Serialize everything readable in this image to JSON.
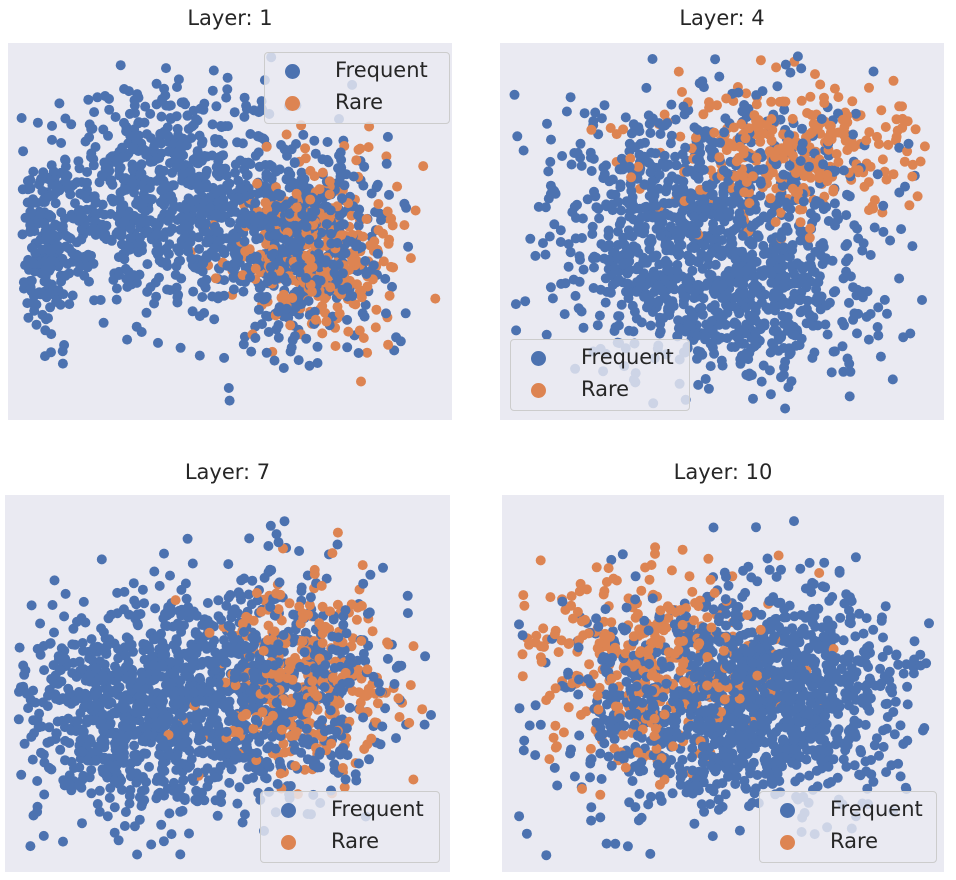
{
  "colors": {
    "frequent": "#4c72b0",
    "rare": "#dd8452",
    "plot_bg": "#eaeaf2"
  },
  "chart_data": [
    {
      "type": "scatter",
      "title": "Layer: 1",
      "legend_location": "upper right",
      "grid": false,
      "xlim": [
        -10,
        10
      ],
      "ylim": [
        -10,
        10
      ],
      "series": [
        {
          "name": "Frequent",
          "n": 1500,
          "color": "#4c72b0",
          "clusters": [
            {
              "w": 0.18,
              "cx": -5.5,
              "cy": 1.5,
              "sx": 1.6,
              "sy": 2.8
            },
            {
              "w": 0.22,
              "cx": -2.5,
              "cy": 2.0,
              "sx": 1.6,
              "sy": 2.8
            },
            {
              "w": 0.2,
              "cx": 1.0,
              "cy": 0.5,
              "sx": 1.8,
              "sy": 2.8
            },
            {
              "w": 0.28,
              "cx": 3.5,
              "cy": -0.5,
              "sx": 1.8,
              "sy": 2.6
            },
            {
              "w": 0.12,
              "cx": -8.3,
              "cy": -1.0,
              "sx": 0.7,
              "sy": 2.5
            }
          ]
        },
        {
          "name": "Rare",
          "n": 320,
          "color": "#dd8452",
          "clusters": [
            {
              "w": 1.0,
              "cx": 4.0,
              "cy": -1.0,
              "sx": 1.9,
              "sy": 2.4
            }
          ]
        }
      ]
    },
    {
      "type": "scatter",
      "title": "Layer: 4",
      "legend_location": "lower left",
      "grid": false,
      "xlim": [
        -10,
        10
      ],
      "ylim": [
        -10,
        10
      ],
      "series": [
        {
          "name": "Frequent",
          "n": 1300,
          "color": "#4c72b0",
          "clusters": [
            {
              "w": 0.4,
              "cx": -2.5,
              "cy": -1.5,
              "sx": 2.6,
              "sy": 3.0
            },
            {
              "w": 0.3,
              "cx": 2.0,
              "cy": -3.5,
              "sx": 2.4,
              "sy": 2.4
            },
            {
              "w": 0.3,
              "cx": 0.0,
              "cy": 3.0,
              "sx": 3.8,
              "sy": 2.6
            }
          ]
        },
        {
          "name": "Rare",
          "n": 320,
          "color": "#dd8452",
          "clusters": [
            {
              "w": 1.0,
              "cx": 3.0,
              "cy": 4.0,
              "sx": 3.0,
              "sy": 1.8
            }
          ]
        }
      ]
    },
    {
      "type": "scatter",
      "title": "Layer: 7",
      "legend_location": "lower right",
      "grid": false,
      "xlim": [
        -10,
        10
      ],
      "ylim": [
        -10,
        10
      ],
      "series": [
        {
          "name": "Frequent",
          "n": 1500,
          "color": "#4c72b0",
          "clusters": [
            {
              "w": 0.6,
              "cx": -4.0,
              "cy": -1.5,
              "sx": 3.0,
              "sy": 2.8
            },
            {
              "w": 0.4,
              "cx": 2.0,
              "cy": 0.0,
              "sx": 3.0,
              "sy": 3.2
            }
          ]
        },
        {
          "name": "Rare",
          "n": 320,
          "color": "#dd8452",
          "clusters": [
            {
              "w": 1.0,
              "cx": 3.5,
              "cy": 0.0,
              "sx": 2.2,
              "sy": 2.6
            }
          ]
        }
      ]
    },
    {
      "type": "scatter",
      "title": "Layer: 10",
      "legend_location": "lower right",
      "grid": false,
      "xlim": [
        -10,
        10
      ],
      "ylim": [
        -10,
        10
      ],
      "series": [
        {
          "name": "Frequent",
          "n": 1400,
          "color": "#4c72b0",
          "clusters": [
            {
              "w": 0.7,
              "cx": 2.5,
              "cy": -0.5,
              "sx": 2.8,
              "sy": 2.8
            },
            {
              "w": 0.3,
              "cx": -2.5,
              "cy": -1.0,
              "sx": 3.2,
              "sy": 3.2
            }
          ]
        },
        {
          "name": "Rare",
          "n": 360,
          "color": "#dd8452",
          "clusters": [
            {
              "w": 1.0,
              "cx": -3.5,
              "cy": 1.5,
              "sx": 3.0,
              "sy": 2.6
            }
          ]
        }
      ]
    }
  ]
}
